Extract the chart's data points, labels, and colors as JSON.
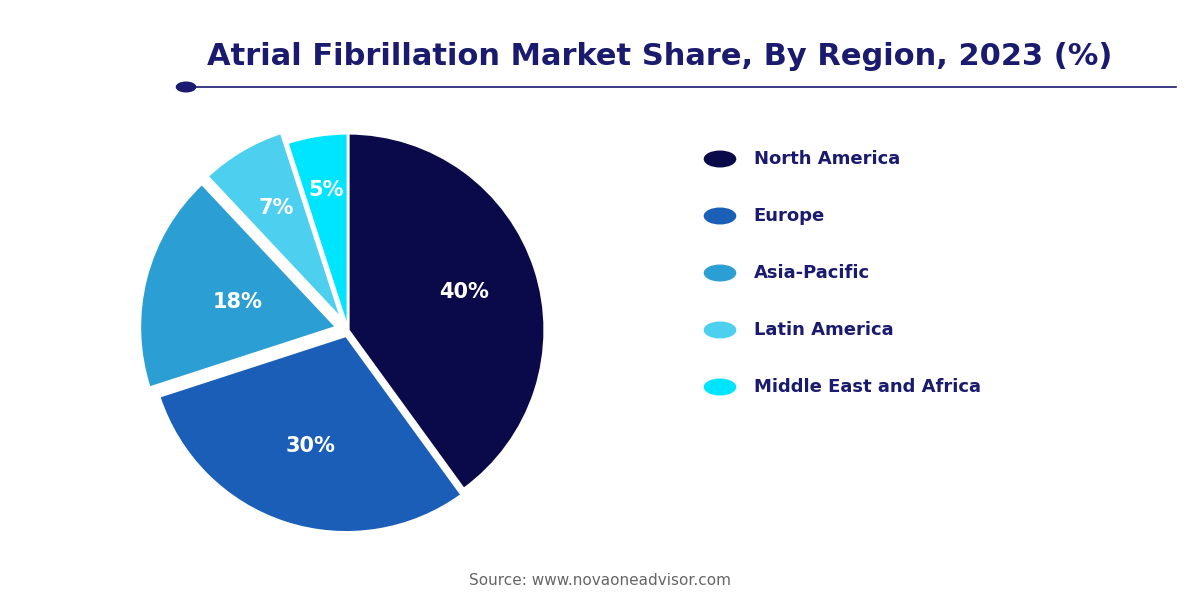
{
  "title": "Atrial Fibrillation Market Share, By Region, 2023 (%)",
  "title_color": "#1a1a6e",
  "title_fontsize": 22,
  "labels": [
    "North America",
    "Europe",
    "Asia-Pacific",
    "Latin America",
    "Middle East and Africa"
  ],
  "values": [
    40,
    30,
    18,
    7,
    5
  ],
  "colors": [
    "#0a0a4a",
    "#1a5eb8",
    "#2b9fd4",
    "#4dcfef",
    "#00e5ff"
  ],
  "explode": [
    0,
    0.03,
    0.06,
    0.06,
    0
  ],
  "pct_labels": [
    "40%",
    "30%",
    "18%",
    "7%",
    "5%"
  ],
  "pct_label_color": "#ffffff",
  "pct_fontsize": 15,
  "legend_fontsize": 13,
  "legend_text_color": "#1a1a6e",
  "source_text": "Source: www.novaoneadvisor.com",
  "source_fontsize": 11,
  "source_color": "#666666",
  "separator_color": "#1a1a6e",
  "background_color": "#ffffff",
  "logo_bg_color": "#1a5eb8",
  "logo_text_color": "#ffffff"
}
